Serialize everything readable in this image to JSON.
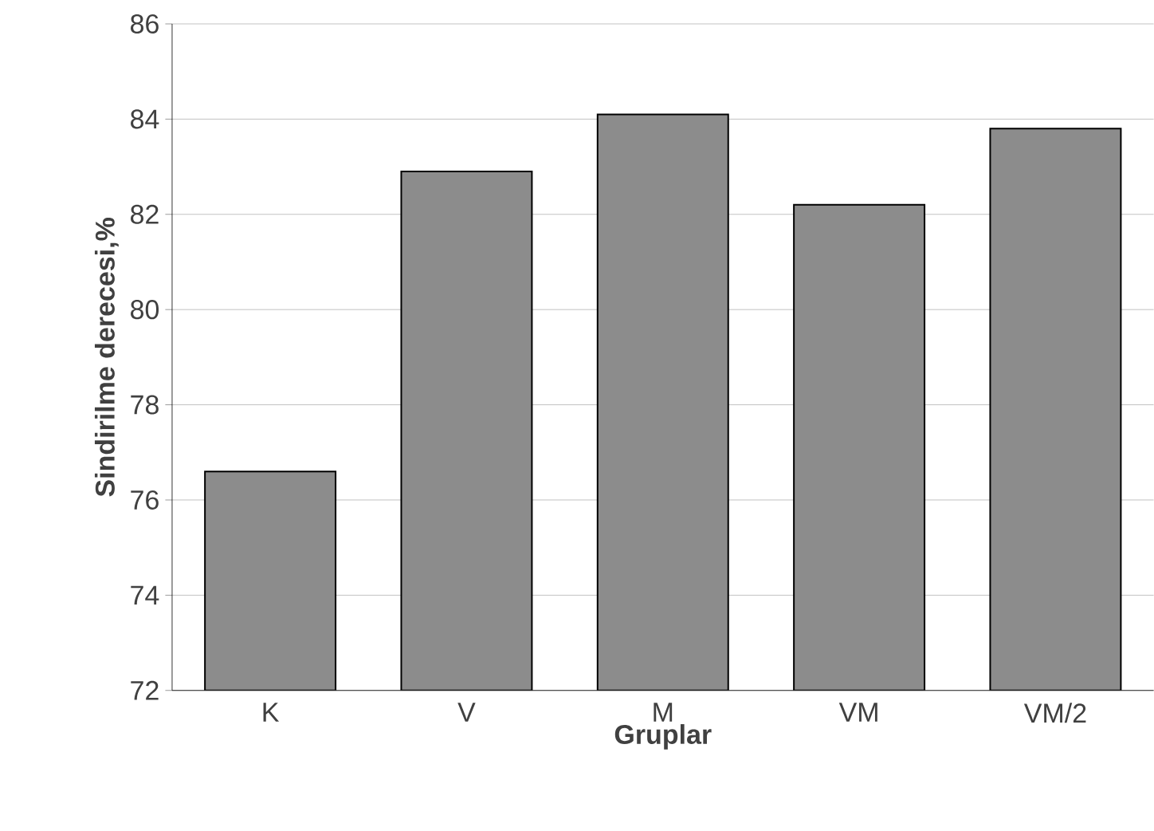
{
  "chart_data": {
    "type": "bar",
    "xlabel": "Gruplar",
    "ylabel": "Sindirilme derecesi,%",
    "categories": [
      "K",
      "V",
      "M",
      "VM",
      "VM/2"
    ],
    "values": [
      76.6,
      82.9,
      84.1,
      82.2,
      83.8
    ],
    "color": "#8c8c8c",
    "ylim": [
      72,
      86
    ],
    "yticks": [
      72,
      74,
      76,
      78,
      80,
      82,
      84,
      86
    ],
    "grid": "y"
  }
}
